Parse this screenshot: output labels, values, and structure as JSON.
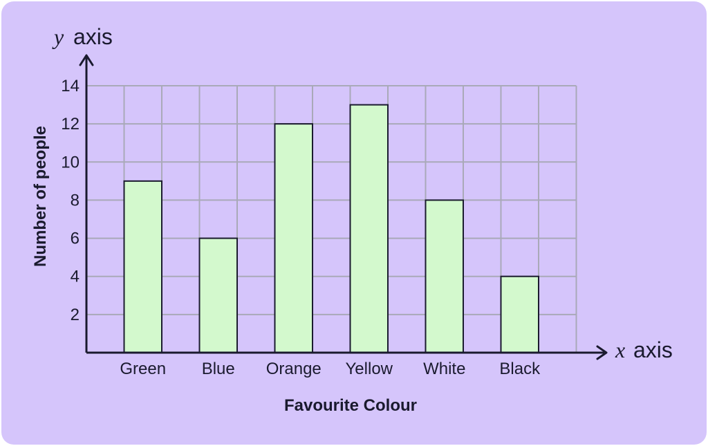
{
  "colors": {
    "background": "#d5c5fb",
    "grid": "#a9a9b8",
    "bar_fill": "#d3f9cd",
    "bar_stroke": "#1a1a2e",
    "axis": "#1a1a2e"
  },
  "axis_names": {
    "y_var": "y",
    "y_word": "axis",
    "x_var": "x",
    "x_word": "axis"
  },
  "chart_data": {
    "type": "bar",
    "title": "",
    "categories": [
      "Green",
      "Blue",
      "Orange",
      "Yellow",
      "White",
      "Black"
    ],
    "values": [
      9,
      6,
      12,
      13,
      8,
      4
    ],
    "xlabel": "Favourite Colour",
    "ylabel": "Number of people",
    "ylim": [
      0,
      14
    ],
    "y_ticks": [
      2,
      4,
      6,
      8,
      10,
      12,
      14
    ],
    "y_tick_step": 2,
    "grid": true,
    "legend": "none"
  }
}
